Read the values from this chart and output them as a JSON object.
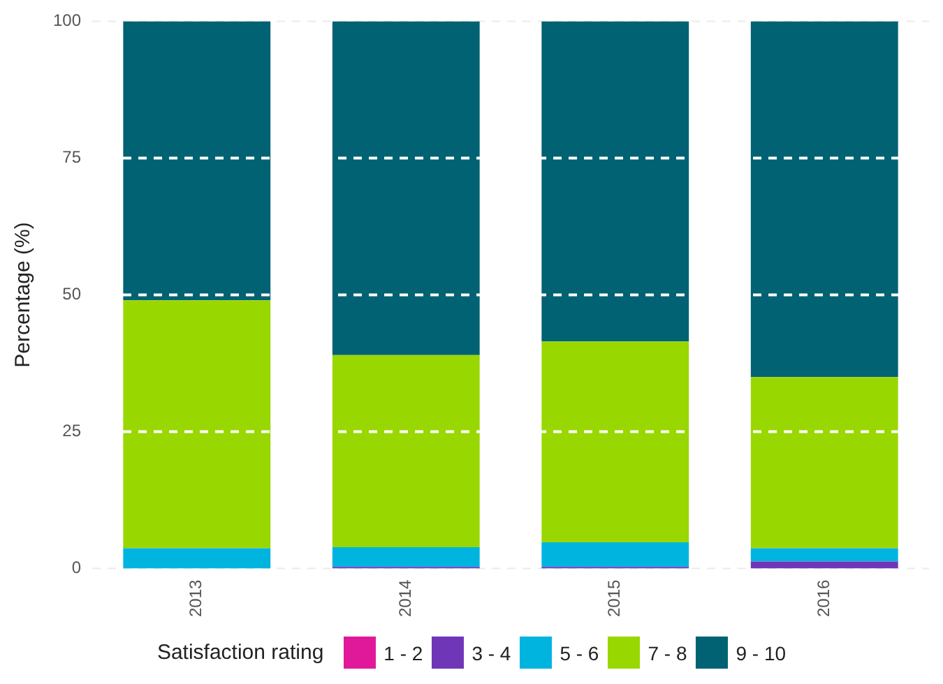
{
  "chart_data": {
    "type": "bar",
    "stacked": true,
    "ylabel": "Percentage (%)",
    "legend_title": "Satisfaction rating",
    "legend": "bottom",
    "grid": "y",
    "categories": [
      "2013",
      "2014",
      "2015",
      "2016"
    ],
    "ylim": [
      0,
      100
    ],
    "yticks": [
      0,
      25,
      50,
      75,
      100
    ],
    "series": [
      {
        "name": "1 - 2",
        "color": "#e0199a",
        "values": [
          0,
          0,
          0,
          0
        ]
      },
      {
        "name": "3 - 4",
        "color": "#7036b8",
        "values": [
          0,
          0.3,
          0.3,
          1.3
        ]
      },
      {
        "name": "5 - 6",
        "color": "#00b4e0",
        "values": [
          3.7,
          3.6,
          4.5,
          2.4
        ]
      },
      {
        "name": "7 - 8",
        "color": "#99d700",
        "values": [
          45.3,
          35.1,
          36.7,
          31.3
        ]
      },
      {
        "name": "9 - 10",
        "color": "#006272",
        "values": [
          51,
          61,
          58.5,
          65
        ]
      }
    ]
  }
}
